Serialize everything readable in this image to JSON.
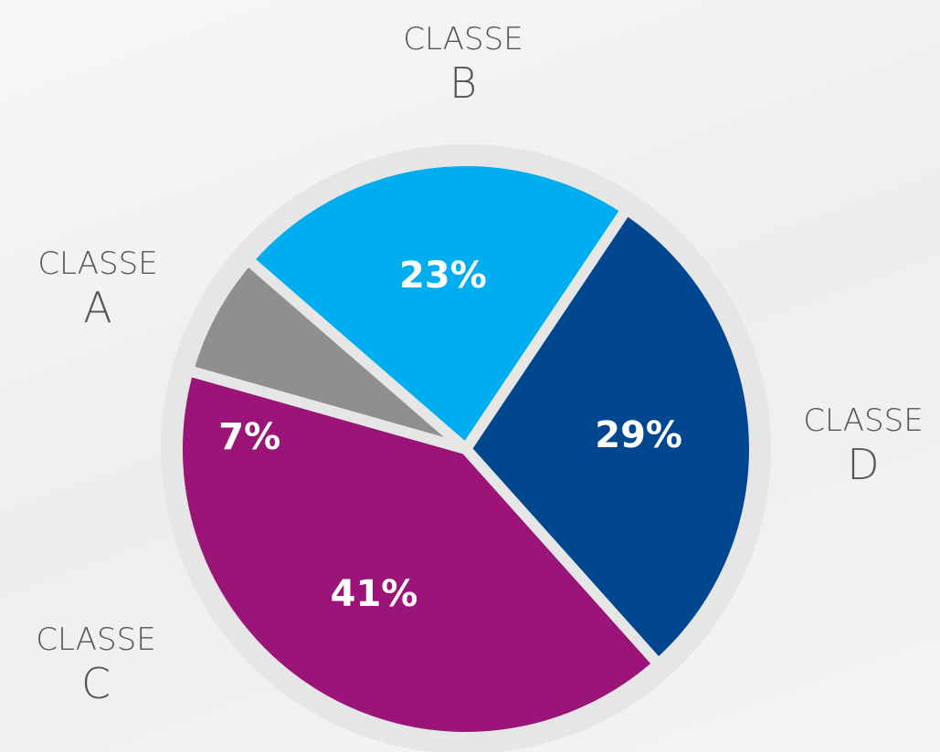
{
  "chart_data": {
    "type": "pie",
    "categories": [
      "CLASSE B",
      "CLASSE D",
      "CLASSE C",
      "CLASSE A"
    ],
    "values": [
      23,
      29,
      41,
      7
    ],
    "value_labels": [
      "23%",
      "29%",
      "41%",
      "7%"
    ],
    "colors": [
      "#00aeef",
      "#00478f",
      "#9b1578",
      "#8f8f8f"
    ]
  }
}
